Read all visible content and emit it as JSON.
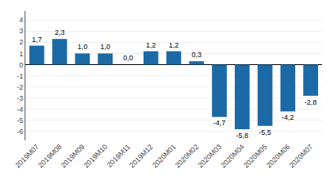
{
  "chart_data": {
    "type": "bar",
    "categories": [
      "2019M07",
      "2019M08",
      "2019M09",
      "2019M10",
      "2019M11",
      "2019M12",
      "2020M01",
      "2020M02",
      "2020M03",
      "2020M04",
      "2020M05",
      "2020M06",
      "2020M07"
    ],
    "values": [
      1.7,
      2.3,
      1.0,
      1.0,
      0.0,
      1.2,
      1.2,
      0.3,
      -4.7,
      -5.8,
      -5.5,
      -4.2,
      -2.8
    ],
    "value_labels": [
      "1,7",
      "2,3",
      "1,0",
      "1,0",
      "0,0",
      "1,2",
      "1,2",
      "0,3",
      "-4,7",
      "-5,8",
      "-5,5",
      "-4,2",
      "-2,8"
    ],
    "data_labels": true,
    "color": "#1b6aa5",
    "ylim": [
      -6.8,
      4.8
    ],
    "yticks": [
      -6,
      -5,
      -4,
      -3,
      -2,
      -1,
      0,
      1,
      2,
      3,
      4
    ],
    "grid": true
  }
}
